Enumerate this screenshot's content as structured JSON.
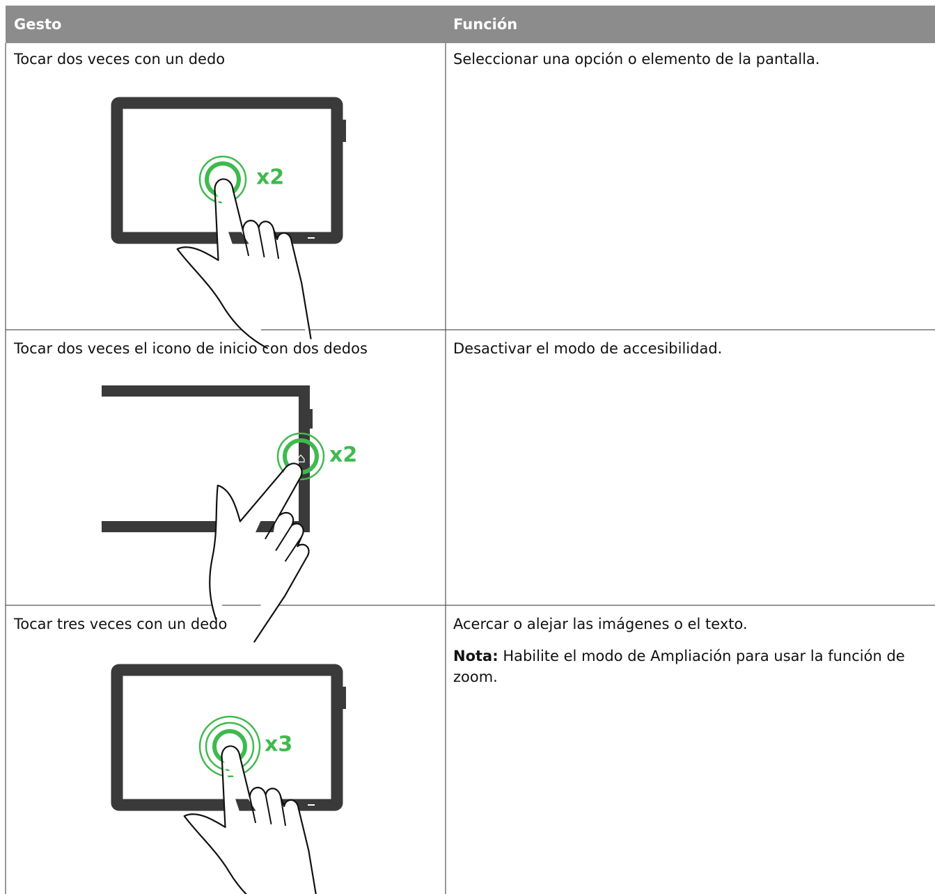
{
  "table": {
    "header": [
      "Gesto",
      "Función"
    ],
    "rows": [
      {
        "gesture": "Tocar dos veces con un dedo",
        "badge": "x2",
        "function": "Seleccionar una opción o elemento de la pantalla."
      },
      {
        "gesture": "Tocar dos veces el icono de inicio con dos dedos",
        "badge": "x2",
        "function": "Desactivar el modo de accesibilidad."
      },
      {
        "gesture": "Tocar tres veces con un dedo",
        "badge": "x3",
        "function": "Acercar o alejar las imágenes o el texto.",
        "note_label": "Nota:",
        "note": "Habilite el modo de Ampliación para usar la función de zoom."
      }
    ]
  }
}
